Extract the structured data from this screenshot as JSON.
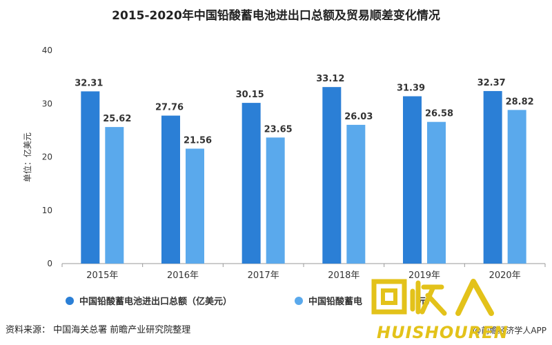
{
  "chart_data": {
    "type": "bar",
    "title": "2015-2020年中国铅酸蓄电池进出口总额及贸易顺差变化情况",
    "ylabel": "单位：亿美元",
    "xlabel": "",
    "categories": [
      "2015年",
      "2016年",
      "2017年",
      "2018年",
      "2019年",
      "2020年"
    ],
    "ylim": [
      0,
      40
    ],
    "yticks": [
      0,
      10,
      20,
      30,
      40
    ],
    "grid": false,
    "legend_position": "bottom",
    "series": [
      {
        "name": "中国铅酸蓄电池进出口总额（亿美元）",
        "color": "#2b7fd6",
        "values": [
          32.31,
          27.76,
          30.15,
          33.12,
          31.39,
          32.37
        ]
      },
      {
        "name": "中国铅酸蓄电",
        "color": "#5aa9ec",
        "values": [
          25.62,
          21.56,
          23.65,
          26.03,
          26.58,
          28.82
        ]
      }
    ]
  },
  "legend_tail": "元）",
  "footer": {
    "source": "资料来源： 中国海关总署 前瞻产业研究院整理",
    "credit": "@前瞻经济学人APP"
  },
  "logo": {
    "main_text": "回收人",
    "sub_text": "HUISHOUREN",
    "color": "#e3c21a"
  }
}
